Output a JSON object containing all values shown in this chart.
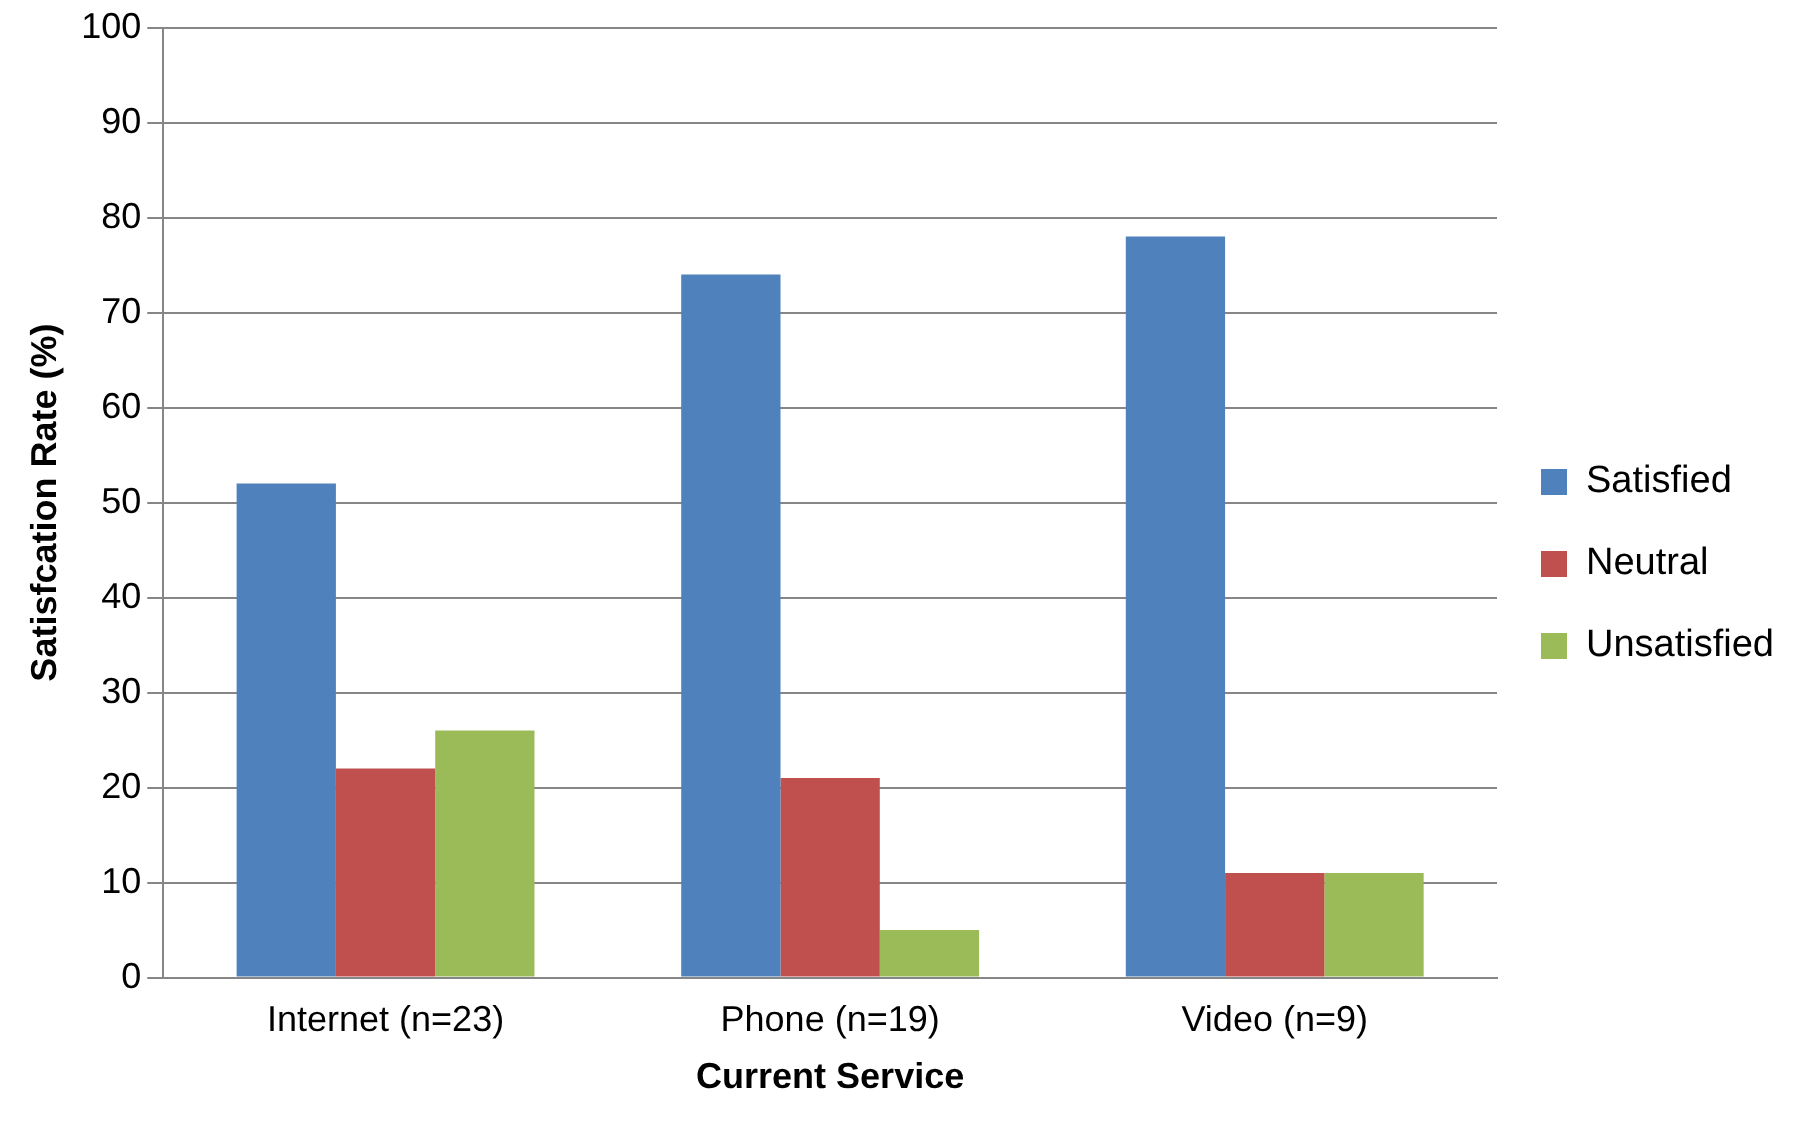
{
  "chart_data": {
    "type": "bar",
    "xlabel": "Current Service",
    "ylabel": "Satisfcation Rate (%)",
    "categories": [
      "Internet (n=23)",
      "Phone (n=19)",
      "Video (n=9)"
    ],
    "series": [
      {
        "name": "Satisfied",
        "color": "#4f81bd",
        "values": [
          52,
          74,
          78
        ]
      },
      {
        "name": "Neutral",
        "color": "#c0504d",
        "values": [
          22,
          21,
          11
        ]
      },
      {
        "name": "Unsatisfied",
        "color": "#9bbb59",
        "values": [
          26,
          5,
          11
        ]
      }
    ],
    "ylim": [
      0,
      100
    ],
    "yticks": [
      0,
      10,
      20,
      30,
      40,
      50,
      60,
      70,
      80,
      90,
      100
    ],
    "grid": "y",
    "legend": "right"
  }
}
